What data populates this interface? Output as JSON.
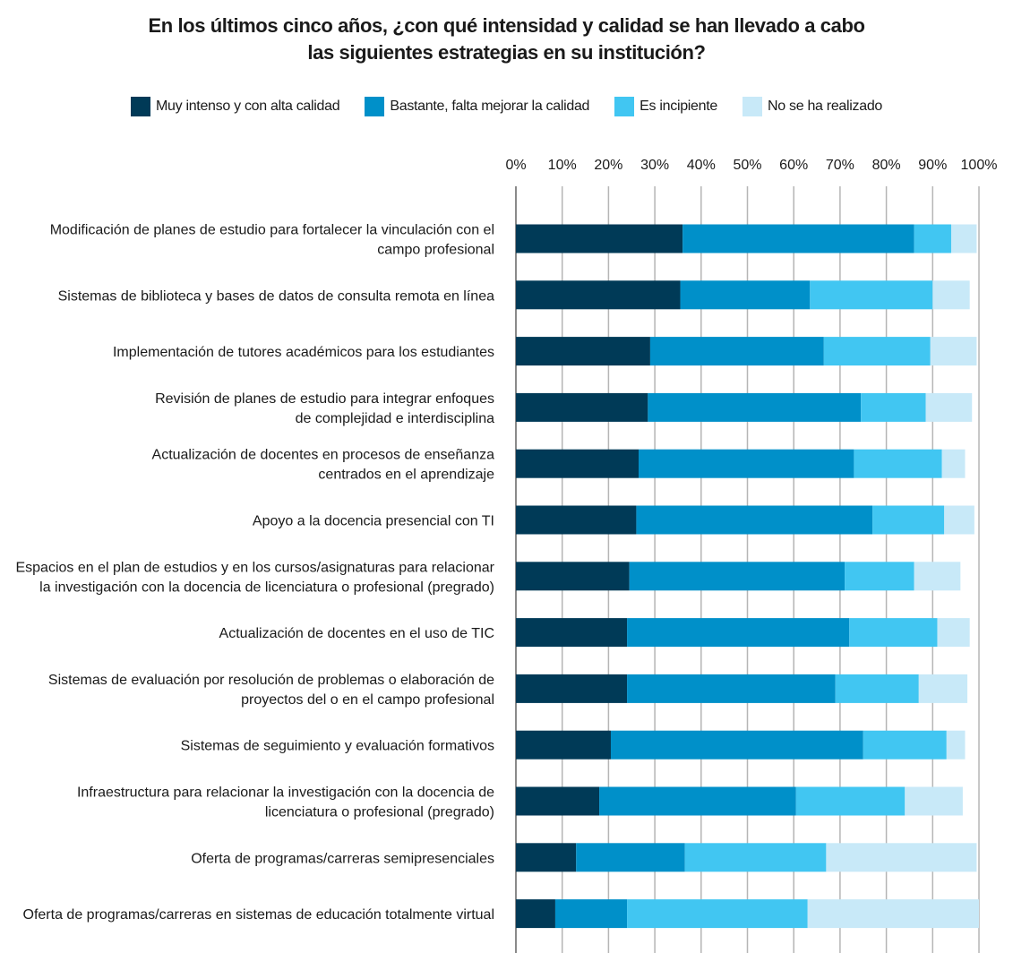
{
  "title_lines": [
    "En los últimos cinco años, ¿con qué intensidad y calidad se han llevado a cabo",
    "las siguientes estrategias en su institución?"
  ],
  "chart_data": {
    "type": "bar",
    "orientation": "horizontal",
    "stacked": true,
    "title": "En los últimos cinco años, ¿con qué intensidad y calidad se han llevado a cabo las siguientes estrategias en su institución?",
    "xlim": [
      0,
      100
    ],
    "x_ticks": [
      "0%",
      "10%",
      "20%",
      "30%",
      "40%",
      "50%",
      "60%",
      "70%",
      "80%",
      "90%",
      "100%"
    ],
    "grid": true,
    "legend_position": "top",
    "categories": [
      [
        "Modificación de planes de estudio para fortalecer la vinculación con el",
        "campo profesional"
      ],
      [
        "Sistemas de biblioteca y bases de datos de consulta remota en línea"
      ],
      [
        "Implementación de tutores académicos para los estudiantes"
      ],
      [
        "Revisión de planes de estudio para integrar enfoques",
        "de complejidad e interdisciplina"
      ],
      [
        "Actualización de docentes en procesos de enseñanza",
        "centrados en el aprendizaje"
      ],
      [
        "Apoyo a la docencia presencial con TI"
      ],
      [
        "Espacios en el plan de estudios y en los cursos/asignaturas para relacionar",
        "la investigación con la docencia de licenciatura o profesional (pregrado)"
      ],
      [
        "Actualización de docentes en el uso de TIC"
      ],
      [
        "Sistemas de evaluación por resolución de problemas o elaboración de",
        "proyectos del o en el campo profesional"
      ],
      [
        "Sistemas de seguimiento y evaluación formativos"
      ],
      [
        "Infraestructura para relacionar la investigación con la docencia de",
        "licenciatura o profesional (pregrado)"
      ],
      [
        "Oferta de programas/carreras semipresenciales"
      ],
      [
        "Oferta de programas/carreras en sistemas de educación totalmente virtual"
      ]
    ],
    "series": [
      {
        "name": "Muy intenso y con alta calidad",
        "color": "#003a57",
        "values": [
          36,
          35.5,
          29,
          28.5,
          26.5,
          26,
          24.5,
          24,
          24,
          20.5,
          18,
          13,
          8.5
        ]
      },
      {
        "name": "Bastante, falta mejorar la calidad",
        "color": "#0090c9",
        "values": [
          50,
          28,
          37.5,
          46,
          46.5,
          51,
          46.5,
          48,
          45,
          54.5,
          42.5,
          23.5,
          15.5
        ]
      },
      {
        "name": "Es incipiente",
        "color": "#41c6f2",
        "values": [
          8,
          26.5,
          23,
          14,
          19,
          15.5,
          15,
          19,
          18,
          18,
          23.5,
          30.5,
          39
        ]
      },
      {
        "name": "No se ha realizado",
        "color": "#c8e9f8",
        "values": [
          5.5,
          8,
          10,
          10,
          5,
          6.5,
          10,
          7,
          10.5,
          4,
          12.5,
          32.5,
          37
        ]
      }
    ]
  }
}
